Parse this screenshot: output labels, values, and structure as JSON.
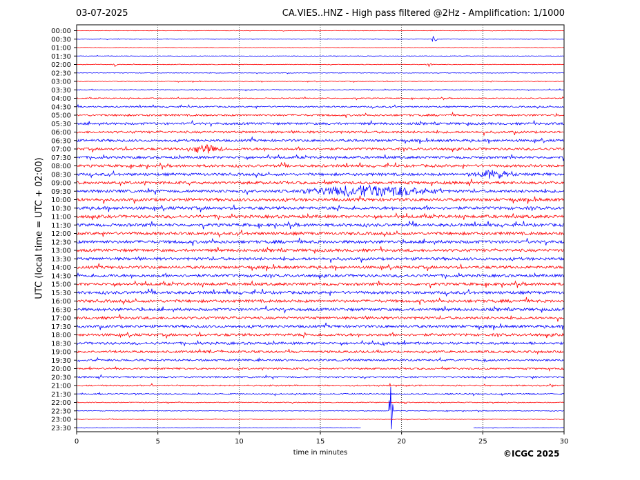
{
  "header": {
    "date": "03-07-2025",
    "title": "CA.VIES..HNZ - High pass filtered @2Hz - Amplification: 1/1000"
  },
  "footer": {
    "copyright": "©ICGC 2025"
  },
  "chart_data": {
    "type": "line",
    "title": "CA.VIES..HNZ - High pass filtered @2Hz - Amplification: 1/1000",
    "xlabel": "time in minutes",
    "ylabel": "UTC (local time = UTC + 02:00)",
    "xlim": [
      0,
      30
    ],
    "x_ticks": [
      0,
      5,
      10,
      15,
      20,
      25,
      30
    ],
    "grid": "vertical dotted at 5-minute ticks",
    "trace_colors": [
      "#ff0000",
      "#0000ff"
    ],
    "rows": [
      "00:00",
      "00:30",
      "01:00",
      "01:30",
      "02:00",
      "02:30",
      "03:00",
      "03:30",
      "04:00",
      "04:30",
      "05:00",
      "05:30",
      "06:00",
      "06:30",
      "07:00",
      "07:30",
      "08:00",
      "08:30",
      "09:00",
      "09:30",
      "10:00",
      "10:30",
      "11:00",
      "11:30",
      "12:00",
      "12:30",
      "13:00",
      "13:30",
      "14:00",
      "14:30",
      "15:00",
      "15:30",
      "16:00",
      "16:30",
      "17:00",
      "17:30",
      "18:00",
      "18:30",
      "19:00",
      "19:30",
      "20:00",
      "20:30",
      "21:00",
      "21:30",
      "22:00",
      "22:30",
      "23:00",
      "23:30"
    ],
    "row_noise_level": [
      0.5,
      0.5,
      0.5,
      0.5,
      0.7,
      0.7,
      0.8,
      1.0,
      1.2,
      1.6,
      2.2,
      2.6,
      2.6,
      2.8,
      2.8,
      2.8,
      3.0,
      3.0,
      3.2,
      3.2,
      3.4,
      3.4,
      3.4,
      3.4,
      3.4,
      3.4,
      3.2,
      3.2,
      3.2,
      3.2,
      3.2,
      3.2,
      3.2,
      3.2,
      3.0,
      3.0,
      3.0,
      2.8,
      2.6,
      2.2,
      2.0,
      1.8,
      1.6,
      1.4,
      1.0,
      0.8,
      0.6,
      0.5
    ],
    "events": [
      {
        "row": "00:30",
        "start": 21.8,
        "end": 22.2,
        "amplitude": 6
      },
      {
        "row": "02:00",
        "start": 2.2,
        "end": 2.5,
        "amplitude": 5
      },
      {
        "row": "02:00",
        "start": 21.5,
        "end": 21.9,
        "amplitude": 4
      },
      {
        "row": "07:00",
        "start": 6.7,
        "end": 9.2,
        "amplitude": 8
      },
      {
        "row": "08:30",
        "start": 24.0,
        "end": 27.2,
        "amplitude": 8
      },
      {
        "row": "09:30",
        "start": 13.8,
        "end": 22.8,
        "amplitude": 12
      },
      {
        "row": "22:30",
        "start": 19.2,
        "end": 19.5,
        "amplitude": 70
      },
      {
        "row": "18:30",
        "start": 18.7,
        "end": 19.0,
        "amplitude": 6
      }
    ],
    "data_gaps": [
      {
        "row": "23:30",
        "start": 17.5,
        "end": 24.4
      }
    ]
  }
}
